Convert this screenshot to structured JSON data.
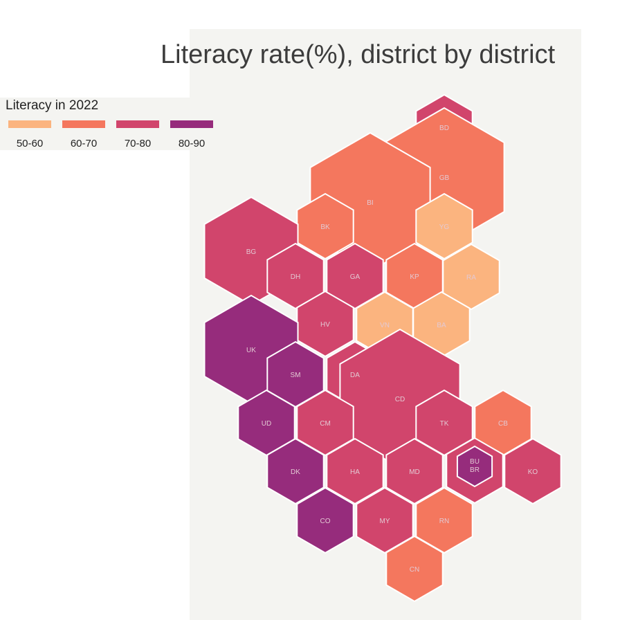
{
  "title": "Literacy rate(%), district by district",
  "legend": {
    "title": "Literacy in 2022",
    "items": [
      {
        "label": "50-60",
        "color": "#fbb47f"
      },
      {
        "label": "60-70",
        "color": "#f4775e"
      },
      {
        "label": "70-80",
        "color": "#d1456c"
      },
      {
        "label": "80-90",
        "color": "#962c7c"
      }
    ]
  },
  "districts": [
    {
      "code": "BD",
      "lines": [
        "BD"
      ],
      "band": "70-80"
    },
    {
      "code": "GB",
      "lines": [
        "GB"
      ],
      "band": "60-70"
    },
    {
      "code": "BI",
      "lines": [
        "BI"
      ],
      "band": "60-70"
    },
    {
      "code": "BK",
      "lines": [
        "BK"
      ],
      "band": "60-70"
    },
    {
      "code": "YG",
      "lines": [
        "YG"
      ],
      "band": "50-60"
    },
    {
      "code": "BG",
      "lines": [
        "BG"
      ],
      "band": "70-80"
    },
    {
      "code": "DH",
      "lines": [
        "DH"
      ],
      "band": "70-80"
    },
    {
      "code": "GA",
      "lines": [
        "GA"
      ],
      "band": "70-80"
    },
    {
      "code": "KP",
      "lines": [
        "KP"
      ],
      "band": "60-70"
    },
    {
      "code": "RA",
      "lines": [
        "RA"
      ],
      "band": "50-60"
    },
    {
      "code": "HV",
      "lines": [
        "HV"
      ],
      "band": "70-80"
    },
    {
      "code": "VN",
      "lines": [
        "VN"
      ],
      "band": "50-60"
    },
    {
      "code": "BA",
      "lines": [
        "BA"
      ],
      "band": "50-60"
    },
    {
      "code": "UK",
      "lines": [
        "UK"
      ],
      "band": "80-90"
    },
    {
      "code": "SM",
      "lines": [
        "SM"
      ],
      "band": "80-90"
    },
    {
      "code": "DA",
      "lines": [
        "DA"
      ],
      "band": "70-80"
    },
    {
      "code": "CD",
      "lines": [
        "CD"
      ],
      "band": "70-80"
    },
    {
      "code": "UD",
      "lines": [
        "UD"
      ],
      "band": "80-90"
    },
    {
      "code": "CM",
      "lines": [
        "CM"
      ],
      "band": "70-80"
    },
    {
      "code": "TK",
      "lines": [
        "TK"
      ],
      "band": "70-80"
    },
    {
      "code": "CB",
      "lines": [
        "CB"
      ],
      "band": "60-70"
    },
    {
      "code": "DK",
      "lines": [
        "DK"
      ],
      "band": "80-90"
    },
    {
      "code": "HA",
      "lines": [
        "HA"
      ],
      "band": "70-80"
    },
    {
      "code": "MD",
      "lines": [
        "MD"
      ],
      "band": "70-80"
    },
    {
      "code": "BR",
      "lines": [],
      "band": "70-80"
    },
    {
      "code": "BU",
      "lines": [
        "BU",
        "BR"
      ],
      "band": "80-90"
    },
    {
      "code": "KO",
      "lines": [
        "KO"
      ],
      "band": "70-80"
    },
    {
      "code": "CO",
      "lines": [
        "CO"
      ],
      "band": "80-90"
    },
    {
      "code": "MY",
      "lines": [
        "MY"
      ],
      "band": "70-80"
    },
    {
      "code": "RN",
      "lines": [
        "RN"
      ],
      "band": "60-70"
    },
    {
      "code": "CN",
      "lines": [
        "CN"
      ],
      "band": "60-70"
    }
  ]
}
